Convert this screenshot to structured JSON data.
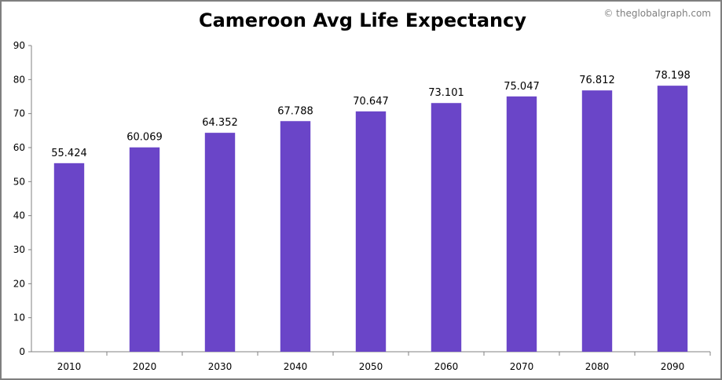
{
  "watermark": "© theglobalgraph.com",
  "chart_data": {
    "type": "bar",
    "title": "Cameroon Avg Life Expectancy",
    "xlabel": "",
    "ylabel": "",
    "categories": [
      "2010",
      "2020",
      "2030",
      "2040",
      "2050",
      "2060",
      "2070",
      "2080",
      "2090"
    ],
    "values": [
      55.424,
      60.069,
      64.352,
      67.788,
      70.647,
      73.101,
      75.047,
      76.812,
      78.198
    ],
    "value_labels": [
      "55.424",
      "60.069",
      "64.352",
      "67.788",
      "70.647",
      "73.101",
      "75.047",
      "76.812",
      "78.198"
    ],
    "ylim": [
      0,
      90
    ],
    "yticks": [
      "0",
      "10",
      "20",
      "30",
      "40",
      "50",
      "60",
      "70",
      "80",
      "90"
    ],
    "grid": false,
    "legend": "none",
    "bar_color": "#6a45c8"
  }
}
